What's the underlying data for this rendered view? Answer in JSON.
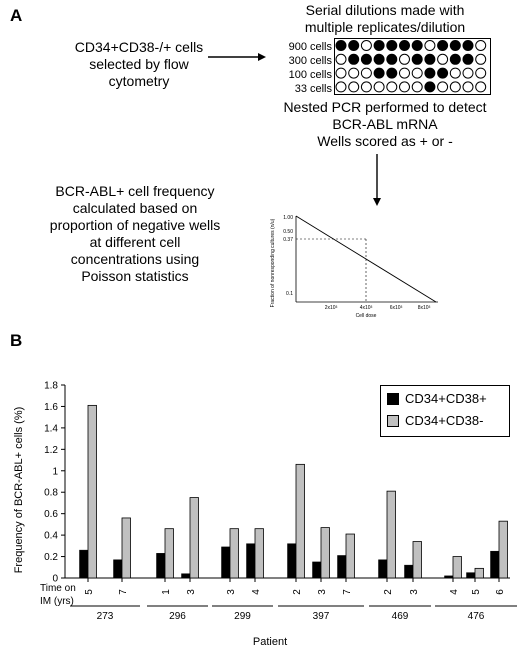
{
  "panel_a": {
    "letter": "A",
    "selection_text": [
      "CD34+CD38-/+ cells",
      "selected by flow",
      "cytometry"
    ],
    "dilution_title": [
      "Serial dilutions made with",
      "multiple replicates/dilution"
    ],
    "plate_rows": [
      {
        "label": "900 cells",
        "wells": [
          1,
          1,
          0,
          1,
          1,
          1,
          1,
          0,
          1,
          1,
          1,
          0
        ]
      },
      {
        "label": "300 cells",
        "wells": [
          0,
          1,
          1,
          1,
          1,
          0,
          1,
          1,
          0,
          1,
          1,
          0
        ]
      },
      {
        "label": "100 cells",
        "wells": [
          0,
          0,
          0,
          1,
          1,
          0,
          0,
          1,
          1,
          0,
          0,
          0
        ]
      },
      {
        "label": "33 cells",
        "wells": [
          0,
          0,
          0,
          0,
          0,
          0,
          0,
          1,
          0,
          0,
          0,
          0
        ]
      }
    ],
    "pcr_text": [
      "Nested PCR performed to detect",
      "BCR-ABL mRNA",
      "Wells scored as + or -"
    ],
    "frequency_text": [
      "BCR-ABL+ cell frequency",
      "calculated based on",
      "proportion of negative wells",
      "at different cell",
      "concentrations using",
      "Poisson statistics"
    ],
    "mini_plot": {
      "ylabel": "Fraction of nonresponding cultures (n/u)",
      "xlabel": "Cell dose",
      "yticks": [
        "1.00",
        "0.50",
        "0.37",
        "0.1"
      ],
      "xticks": [
        "2x10³",
        "4x10³",
        "6x10³",
        "8x10³"
      ]
    }
  },
  "panel_b": {
    "letter": "B",
    "chart_data": {
      "type": "bar",
      "ylabel": "Frequency of BCR-ABL+ cells (%)",
      "xlabel": "Patient",
      "time_label": [
        "Time on",
        "IM (yrs)"
      ],
      "ylim": [
        0,
        1.8
      ],
      "yticks": [
        "0",
        "0.2",
        "0.4",
        "0.6",
        "0.8",
        "1",
        "1.2",
        "1.4",
        "1.6",
        "1.8"
      ],
      "series": [
        {
          "name": "CD34+CD38+",
          "color": "#000000"
        },
        {
          "name": "CD34+CD38-",
          "color": "#c0c0c0"
        }
      ],
      "groups": [
        {
          "patient": "273",
          "times": [
            {
              "time": "5",
              "values": [
                0.26,
                1.61
              ]
            },
            {
              "time": "7",
              "values": [
                0.17,
                0.56
              ]
            }
          ]
        },
        {
          "patient": "296",
          "times": [
            {
              "time": "1",
              "values": [
                0.23,
                0.46
              ]
            },
            {
              "time": "3",
              "values": [
                0.04,
                0.75
              ]
            }
          ]
        },
        {
          "patient": "299",
          "times": [
            {
              "time": "3",
              "values": [
                0.29,
                0.46
              ]
            },
            {
              "time": "4",
              "values": [
                0.32,
                0.46
              ]
            }
          ]
        },
        {
          "patient": "397",
          "times": [
            {
              "time": "2",
              "values": [
                0.32,
                1.06
              ]
            },
            {
              "time": "3",
              "values": [
                0.15,
                0.47
              ]
            },
            {
              "time": "7",
              "values": [
                0.21,
                0.41
              ]
            }
          ]
        },
        {
          "patient": "469",
          "times": [
            {
              "time": "2",
              "values": [
                0.17,
                0.81
              ]
            },
            {
              "time": "3",
              "values": [
                0.12,
                0.34
              ]
            }
          ]
        },
        {
          "patient": "476",
          "times": [
            {
              "time": "4",
              "values": [
                0.02,
                0.2
              ]
            },
            {
              "time": "5",
              "values": [
                0.05,
                0.09
              ]
            },
            {
              "time": "6",
              "values": [
                0.25,
                0.53
              ]
            }
          ]
        }
      ]
    }
  }
}
